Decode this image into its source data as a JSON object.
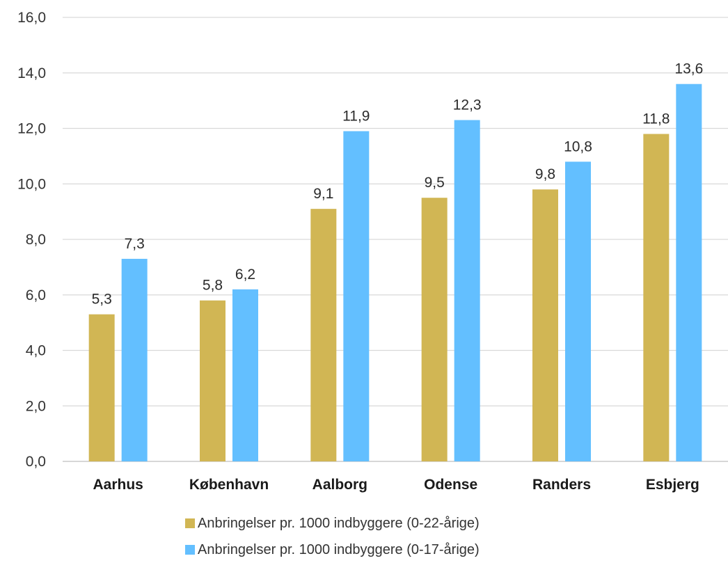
{
  "chart_data": {
    "type": "bar",
    "categories": [
      "Aarhus",
      "København",
      "Aalborg",
      "Odense",
      "Randers",
      "Esbjerg"
    ],
    "series": [
      {
        "name": "Anbringelser pr. 1000 indbyggere (0-22-årige)",
        "color": "#d1b654",
        "values": [
          5.3,
          5.8,
          9.1,
          9.5,
          9.8,
          11.8
        ],
        "labels": [
          "5,3",
          "5,8",
          "9,1",
          "9,5",
          "9,8",
          "11,8"
        ]
      },
      {
        "name": "Anbringelser pr. 1000 indbyggere (0-17-årige)",
        "color": "#63bfff",
        "values": [
          7.3,
          6.2,
          11.9,
          12.3,
          10.8,
          13.6
        ],
        "labels": [
          "7,3",
          "6,2",
          "11,9",
          "12,3",
          "10,8",
          "13,6"
        ]
      }
    ],
    "ylim": [
      0,
      16
    ],
    "yticks": [
      "0,0",
      "2,0",
      "4,0",
      "6,0",
      "8,0",
      "10,0",
      "12,0",
      "14,0",
      "16,0"
    ],
    "title": "",
    "xlabel": "",
    "ylabel": "",
    "grid": true,
    "legend_position": "bottom"
  }
}
